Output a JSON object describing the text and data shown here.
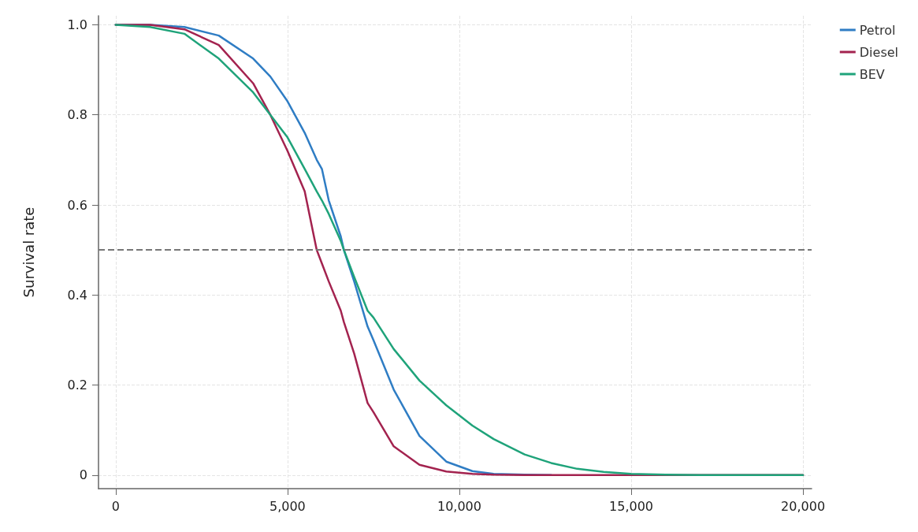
{
  "chart_data": {
    "type": "line",
    "ylabel": "Survival rate",
    "x": [
      0,
      1000,
      2000,
      3000,
      4000,
      4500,
      5000,
      5500,
      5850,
      6000,
      6200,
      6550,
      6640,
      6940,
      7330,
      7500,
      8090,
      8840,
      9620,
      10380,
      11000,
      11900,
      12670,
      13430,
      14200,
      15000,
      16000,
      17000,
      20000
    ],
    "series": [
      {
        "name": "Petrol",
        "color": "#2f7dc4",
        "values": [
          1,
          1,
          0.995,
          0.976,
          0.925,
          0.885,
          0.83,
          0.76,
          0.7,
          0.68,
          0.61,
          0.53,
          0.5,
          0.43,
          0.33,
          0.3,
          0.19,
          0.087,
          0.03,
          0.009,
          0.003,
          0.001,
          0,
          null,
          null,
          null,
          null,
          null,
          null
        ]
      },
      {
        "name": "Diesel",
        "color": "#a3234f",
        "values": [
          1,
          1,
          0.99,
          0.955,
          0.87,
          0.8,
          0.72,
          0.63,
          0.5,
          0.47,
          0.43,
          0.365,
          0.34,
          0.27,
          0.16,
          0.14,
          0.064,
          0.023,
          0.008,
          0.003,
          0.001,
          0,
          0,
          0,
          0,
          0,
          0,
          0,
          0
        ]
      },
      {
        "name": "BEV",
        "color": "#1fa37a",
        "values": [
          1,
          0.995,
          0.98,
          0.925,
          0.85,
          0.8,
          0.75,
          0.68,
          0.63,
          0.61,
          0.58,
          0.52,
          0.5,
          0.44,
          0.365,
          0.35,
          0.28,
          0.21,
          0.155,
          0.11,
          0.08,
          0.046,
          0.027,
          0.014,
          0.007,
          0.003,
          0.001,
          0,
          0
        ]
      }
    ],
    "xlim": [
      -500,
      20250
    ],
    "ylim": [
      -0.03,
      1.02
    ],
    "xticks": [
      0,
      {
        "value": 5000,
        "label": "5,000"
      },
      {
        "value": 10000,
        "label": "10,000"
      },
      {
        "value": 15000,
        "label": "15,000"
      },
      {
        "value": 20000,
        "label": "20,000"
      }
    ],
    "yticks": [
      0,
      0.2,
      0.4,
      0.6,
      0.8,
      {
        "value": 1,
        "label": "1.0"
      }
    ],
    "ref_lines": [
      {
        "axis": "y",
        "value": 0.5,
        "color": "#777777",
        "line_style": "dashed"
      }
    ],
    "grid": true,
    "legend": "top right",
    "marker": "none",
    "line_style": "solid"
  }
}
